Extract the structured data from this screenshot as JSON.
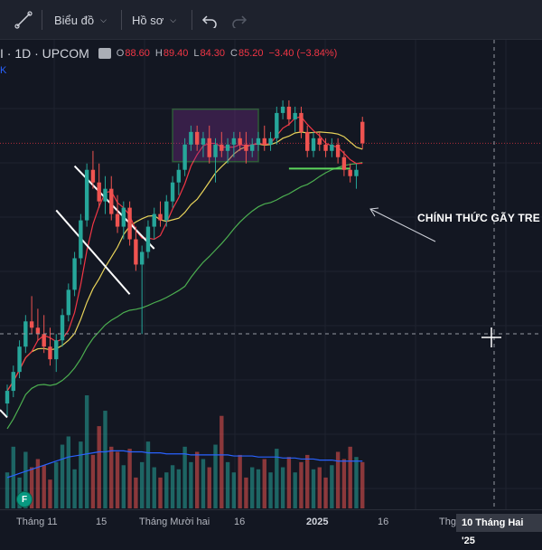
{
  "toolbar": {
    "chart_label": "Biểu đồ",
    "profile_label": "Hồ sơ",
    "undo_icon": "undo-icon",
    "redo_icon": "redo-icon",
    "line_tool_icon": "line-tool-icon"
  },
  "legend": {
    "symbol": "I · 1D · UPCOM",
    "open_label": "O",
    "open": "88.60",
    "high_label": "H",
    "high": "89.40",
    "low_label": "L",
    "low": "84.30",
    "close_label": "C",
    "close": "85.20",
    "change": "−3.40 (−3.84%)",
    "sub_label": "K"
  },
  "annotation": {
    "text": "CHÍNH THỨC GÃY TRE"
  },
  "badge": {
    "text": "F"
  },
  "xaxis": {
    "labels": [
      "Tháng 11",
      "15",
      "Tháng Mười hai",
      "16",
      "2025",
      "16",
      "Thg"
    ],
    "crosshair_date": "10 Tháng Hai '25"
  },
  "colors": {
    "up": "#26a69a",
    "down": "#ef5350",
    "background": "#131722",
    "ma_fast": "#f23645",
    "ma_mid": "#e8d35a",
    "ma_slow": "#4caf50",
    "volume_ma": "#2962ff"
  },
  "chart_data": {
    "type": "candlestick",
    "ohlc": [
      [
        44,
        47,
        42,
        46
      ],
      [
        46,
        50,
        45,
        49
      ],
      [
        49,
        54,
        48,
        53
      ],
      [
        53,
        58,
        52,
        57
      ],
      [
        57,
        61,
        55,
        56
      ],
      [
        56,
        59,
        54,
        55
      ],
      [
        55,
        58,
        52,
        53
      ],
      [
        53,
        56,
        50,
        51
      ],
      [
        51,
        55,
        49,
        54
      ],
      [
        54,
        59,
        53,
        58
      ],
      [
        58,
        63,
        57,
        62
      ],
      [
        62,
        68,
        61,
        67
      ],
      [
        67,
        74,
        66,
        73
      ],
      [
        73,
        82,
        72,
        81
      ],
      [
        81,
        84,
        78,
        79
      ],
      [
        79,
        82,
        75,
        76
      ],
      [
        76,
        80,
        74,
        78
      ],
      [
        78,
        80,
        73,
        74
      ],
      [
        74,
        77,
        71,
        72
      ],
      [
        72,
        76,
        70,
        75
      ],
      [
        75,
        76,
        69,
        70
      ],
      [
        70,
        72,
        65,
        66
      ],
      [
        66,
        69,
        55,
        68
      ],
      [
        68,
        73,
        67,
        72
      ],
      [
        72,
        75,
        70,
        74
      ],
      [
        74,
        76,
        72,
        73
      ],
      [
        73,
        77,
        72,
        76
      ],
      [
        76,
        80,
        75,
        79
      ],
      [
        79,
        82,
        77,
        81
      ],
      [
        81,
        86,
        80,
        85
      ],
      [
        85,
        88,
        84,
        87
      ],
      [
        87,
        88,
        84,
        85
      ],
      [
        85,
        87,
        83,
        86
      ],
      [
        86,
        88,
        82,
        83
      ],
      [
        83,
        86,
        79,
        85
      ],
      [
        85,
        87,
        83,
        84
      ],
      [
        84,
        86,
        82,
        85
      ],
      [
        85,
        87,
        83,
        86
      ],
      [
        86,
        87,
        84,
        85
      ],
      [
        85,
        87,
        82,
        84
      ],
      [
        84,
        86,
        83,
        85
      ],
      [
        85,
        87,
        84,
        86
      ],
      [
        86,
        88,
        84,
        85
      ],
      [
        85,
        87,
        84,
        86
      ],
      [
        86,
        91,
        85,
        90
      ],
      [
        90,
        92,
        89,
        91
      ],
      [
        91,
        92,
        88,
        89
      ],
      [
        89,
        91,
        87,
        90
      ],
      [
        90,
        91,
        86,
        87
      ],
      [
        87,
        88,
        83,
        84
      ],
      [
        84,
        87,
        83,
        86
      ],
      [
        86,
        87,
        84,
        85
      ],
      [
        85,
        86,
        83,
        84
      ],
      [
        84,
        86,
        83,
        85
      ],
      [
        85,
        86,
        82,
        83
      ],
      [
        83,
        84,
        80,
        81
      ],
      [
        81,
        82,
        79,
        80
      ],
      [
        80,
        82,
        78,
        81
      ],
      [
        88.6,
        89.4,
        84.3,
        85.2
      ]
    ],
    "volumes": [
      35,
      60,
      30,
      55,
      40,
      48,
      42,
      28,
      45,
      62,
      70,
      38,
      65,
      110,
      52,
      80,
      95,
      60,
      55,
      42,
      58,
      30,
      45,
      65,
      40,
      30,
      35,
      42,
      38,
      60,
      45,
      55,
      48,
      40,
      62,
      90,
      45,
      35,
      52,
      30,
      40,
      38,
      48,
      35,
      58,
      40,
      50,
      35,
      45,
      52,
      38,
      40,
      30,
      42,
      55,
      48,
      60,
      50,
      45
    ],
    "volume_ma_values": [
      30,
      32,
      34,
      36,
      38,
      40,
      42,
      44,
      46,
      48,
      50,
      51,
      52,
      53,
      54,
      55,
      55,
      56,
      56,
      56,
      55,
      55,
      55,
      54,
      54,
      54,
      53,
      53,
      53,
      53,
      52,
      52,
      52,
      52,
      52,
      52,
      52,
      51,
      51,
      51,
      51,
      50,
      50,
      50,
      50,
      49,
      49,
      49,
      48,
      48,
      48,
      47,
      47,
      47,
      46,
      46,
      46,
      46,
      46
    ]
  }
}
